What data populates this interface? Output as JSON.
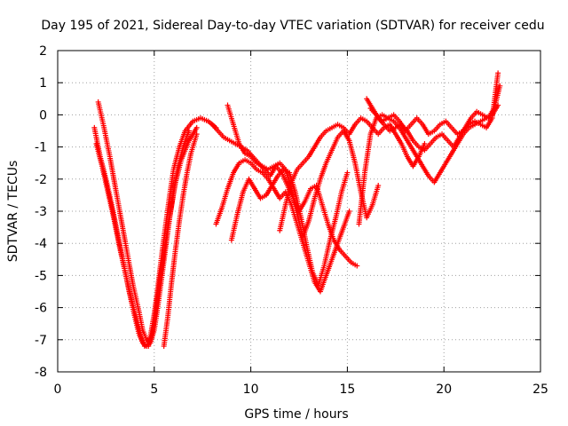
{
  "chart_data": {
    "type": "scatter",
    "title": "Day 195 of 2021, Sidereal Day-to-day VTEC variation (SDTVAR) for receiver cedu",
    "xlabel": "GPS time / hours",
    "ylabel": "SDTVAR / TECUs",
    "xlim": [
      0,
      25
    ],
    "ylim": [
      -8,
      2
    ],
    "xticks": [
      "0",
      "5",
      "10",
      "15",
      "20",
      "25"
    ],
    "yticks": [
      "2",
      "1",
      "0",
      "-1",
      "-2",
      "-3",
      "-4",
      "-5",
      "-6",
      "-7",
      "-8"
    ],
    "grid": true,
    "marker": "+",
    "color": "#ff0000",
    "series": [
      {
        "x": [
          1.9,
          2.2,
          2.5,
          2.8,
          3.1,
          3.4,
          3.7,
          4.0,
          4.2,
          4.4,
          4.6,
          4.8,
          5.0,
          5.2,
          5.4,
          5.6,
          5.8,
          6.0,
          6.3,
          6.6,
          7.0,
          7.4,
          7.8,
          8.2
        ],
        "y": [
          -0.4,
          -1.3,
          -2.0,
          -2.8,
          -3.7,
          -4.6,
          -5.5,
          -6.3,
          -6.8,
          -7.1,
          -7.2,
          -6.9,
          -6.2,
          -5.3,
          -4.3,
          -3.4,
          -2.5,
          -1.7,
          -1.0,
          -0.5,
          -0.2,
          -0.1,
          -0.2,
          -0.4
        ]
      },
      {
        "x": [
          2.1,
          2.4,
          2.7,
          3.0,
          3.3,
          3.6,
          3.9,
          4.2,
          4.4,
          4.6,
          4.8,
          5.0,
          5.2,
          5.4,
          5.6,
          5.8,
          6.0,
          6.2,
          6.5,
          6.8
        ],
        "y": [
          0.4,
          -0.4,
          -1.3,
          -2.3,
          -3.3,
          -4.3,
          -5.3,
          -6.1,
          -6.7,
          -7.0,
          -7.1,
          -6.7,
          -5.9,
          -5.0,
          -4.1,
          -3.2,
          -2.4,
          -1.7,
          -1.0,
          -0.5
        ]
      },
      {
        "x": [
          2.0,
          2.3,
          2.6,
          2.9,
          3.2,
          3.5,
          3.8,
          4.1,
          4.3,
          4.5,
          4.7,
          4.9,
          5.1,
          5.3,
          5.5,
          5.7,
          5.9,
          6.1,
          6.4,
          6.8,
          7.2
        ],
        "y": [
          -0.9,
          -1.6,
          -2.4,
          -3.2,
          -4.1,
          -4.9,
          -5.7,
          -6.4,
          -6.9,
          -7.2,
          -7.2,
          -6.8,
          -6.0,
          -5.1,
          -4.3,
          -3.5,
          -2.8,
          -2.1,
          -1.4,
          -0.8,
          -0.4
        ]
      },
      {
        "x": [
          5.5,
          5.7,
          5.9,
          6.1,
          6.3,
          6.5,
          6.7,
          6.9,
          7.2
        ],
        "y": [
          -7.2,
          -6.3,
          -5.2,
          -4.2,
          -3.3,
          -2.5,
          -1.8,
          -1.2,
          -0.6
        ]
      },
      {
        "x": [
          8.0,
          8.3,
          8.6,
          8.9,
          9.2,
          9.5,
          9.8,
          10.1,
          10.4,
          10.7,
          11.0,
          11.3,
          11.6,
          11.9,
          12.2,
          12.5,
          12.8,
          13.1,
          13.4,
          13.7,
          14.0,
          14.3,
          14.6,
          14.9,
          15.2,
          15.5
        ],
        "y": [
          -0.3,
          -0.5,
          -0.7,
          -0.8,
          -0.9,
          -1.0,
          -1.1,
          -1.3,
          -1.5,
          -1.7,
          -1.9,
          -1.6,
          -1.8,
          -2.2,
          -2.6,
          -3.0,
          -2.7,
          -2.3,
          -2.2,
          -2.8,
          -3.4,
          -3.9,
          -4.2,
          -4.4,
          -4.6,
          -4.7
        ]
      },
      {
        "x": [
          8.2,
          8.5,
          8.8,
          9.1,
          9.4,
          9.7,
          10.0,
          10.3,
          10.6,
          10.9,
          11.2,
          11.5,
          11.8,
          12.1,
          12.4,
          12.7,
          13.0,
          13.3,
          13.6,
          13.9,
          14.2,
          14.5,
          14.8,
          15.1
        ],
        "y": [
          -3.4,
          -2.9,
          -2.3,
          -1.8,
          -1.5,
          -1.4,
          -1.5,
          -1.7,
          -1.8,
          -2.0,
          -2.3,
          -2.6,
          -2.4,
          -2.8,
          -3.4,
          -4.0,
          -4.6,
          -5.2,
          -5.5,
          -5.0,
          -4.5,
          -4.0,
          -3.5,
          -3.0
        ]
      },
      {
        "x": [
          8.8,
          9.1,
          9.4,
          9.7,
          10.0,
          10.3,
          10.6,
          10.9,
          11.2,
          11.5,
          11.8,
          12.1,
          12.4,
          12.7,
          13.0,
          13.3,
          13.6,
          13.9,
          14.2,
          14.5,
          14.8,
          15.1,
          15.4,
          15.7,
          16.0,
          16.3,
          16.6
        ],
        "y": [
          0.3,
          -0.3,
          -0.9,
          -1.2,
          -1.3,
          -1.5,
          -1.6,
          -1.7,
          -1.6,
          -1.5,
          -1.7,
          -2.3,
          -3.1,
          -3.8,
          -3.3,
          -2.6,
          -2.0,
          -1.5,
          -1.1,
          -0.7,
          -0.5,
          -0.8,
          -1.5,
          -2.4,
          -3.2,
          -2.8,
          -2.2
        ]
      },
      {
        "x": [
          9.0,
          9.3,
          9.6,
          9.9,
          10.2,
          10.5,
          10.8,
          11.1,
          11.4,
          11.7,
          12.0,
          12.3,
          12.6,
          12.9,
          13.2,
          13.5,
          13.8,
          14.1,
          14.4,
          14.7,
          15.0
        ],
        "y": [
          -3.9,
          -3.1,
          -2.4,
          -2.0,
          -2.3,
          -2.6,
          -2.5,
          -2.2,
          -1.9,
          -1.7,
          -1.8,
          -2.4,
          -3.2,
          -4.1,
          -4.9,
          -5.3,
          -4.7,
          -3.9,
          -3.2,
          -2.4,
          -1.8
        ]
      },
      {
        "x": [
          11.5,
          11.8,
          12.1,
          12.4,
          12.7,
          13.0,
          13.3,
          13.6,
          13.9,
          14.2,
          14.5,
          14.8,
          15.1,
          15.4,
          15.7,
          16.0,
          16.3,
          16.6,
          16.9,
          17.2,
          17.5,
          17.8,
          18.1,
          18.4,
          18.7,
          19.0
        ],
        "y": [
          -3.6,
          -2.8,
          -2.1,
          -1.7,
          -1.5,
          -1.3,
          -1.0,
          -0.7,
          -0.5,
          -0.4,
          -0.3,
          -0.4,
          -0.6,
          -0.3,
          -0.1,
          -0.2,
          -0.4,
          -0.6,
          -0.4,
          -0.3,
          -0.6,
          -0.9,
          -1.3,
          -1.6,
          -1.3,
          -0.9
        ]
      },
      {
        "x": [
          15.6,
          15.9,
          16.2,
          16.5,
          16.8,
          17.1,
          17.4,
          17.7,
          18.0,
          18.3,
          18.6,
          18.9,
          19.2,
          19.5,
          19.8,
          20.1,
          20.4,
          20.7,
          21.0,
          21.3,
          21.6,
          21.9,
          22.2,
          22.5,
          22.8
        ],
        "y": [
          -3.4,
          -1.8,
          -0.6,
          -0.1,
          0.0,
          -0.1,
          -0.2,
          -0.4,
          -0.7,
          -1.0,
          -1.3,
          -1.6,
          -1.9,
          -2.1,
          -1.8,
          -1.5,
          -1.2,
          -0.9,
          -0.6,
          -0.4,
          -0.3,
          -0.2,
          -0.1,
          0.0,
          0.3
        ]
      },
      {
        "x": [
          16.0,
          16.3,
          16.6,
          16.9,
          17.2,
          17.5,
          17.8,
          18.1,
          18.4,
          18.7,
          19.0,
          19.3,
          19.6,
          19.9,
          20.2,
          20.5,
          20.8,
          21.1,
          21.4,
          21.7,
          22.0,
          22.3,
          22.6,
          22.9
        ],
        "y": [
          0.5,
          0.2,
          -0.1,
          -0.3,
          -0.5,
          -0.4,
          -0.3,
          -0.5,
          -0.8,
          -1.0,
          -1.1,
          -0.9,
          -0.7,
          -0.6,
          -0.8,
          -1.0,
          -0.7,
          -0.4,
          -0.1,
          0.1,
          0.0,
          -0.1,
          0.2,
          0.9
        ]
      },
      {
        "x": [
          16.2,
          16.5,
          16.8,
          17.1,
          17.4,
          17.7,
          18.0,
          18.3,
          18.6,
          18.9,
          19.2,
          19.5,
          19.8,
          20.1,
          20.4,
          20.7,
          21.0,
          21.3,
          21.6,
          21.9,
          22.2,
          22.5,
          22.8
        ],
        "y": [
          0.2,
          0.0,
          -0.2,
          -0.1,
          0.0,
          -0.2,
          -0.5,
          -0.3,
          -0.1,
          -0.3,
          -0.6,
          -0.5,
          -0.3,
          -0.2,
          -0.4,
          -0.6,
          -0.5,
          -0.3,
          -0.2,
          -0.3,
          -0.4,
          -0.1,
          1.3
        ]
      }
    ]
  }
}
